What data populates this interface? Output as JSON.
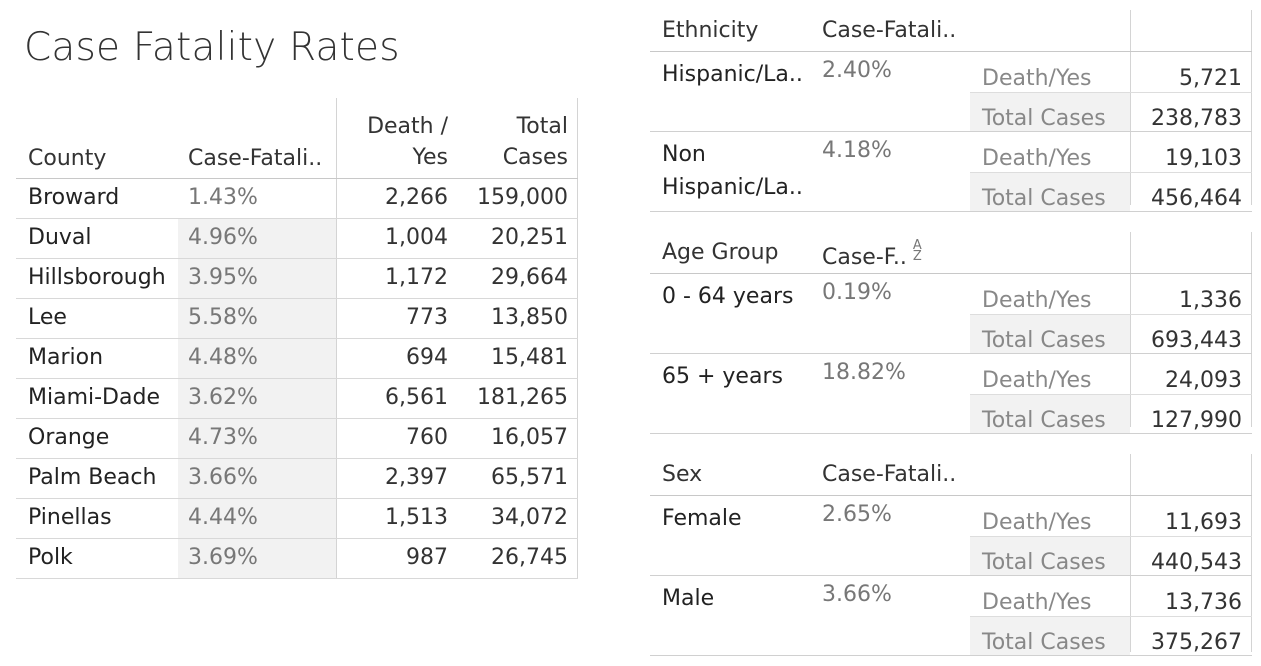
{
  "title": "Case Fatality Rates",
  "county_table": {
    "headers": {
      "county": "County",
      "cfr": "Case-Fatali..",
      "death_line1": "Death /",
      "death_line2": "Yes",
      "total_line1": "Total",
      "total_line2": "Cases"
    },
    "rows": [
      {
        "county": "Broward",
        "cfr": "1.43%",
        "death": "2,266",
        "total": "159,000"
      },
      {
        "county": "Duval",
        "cfr": "4.96%",
        "death": "1,004",
        "total": "20,251"
      },
      {
        "county": "Hillsborough",
        "cfr": "3.95%",
        "death": "1,172",
        "total": "29,664"
      },
      {
        "county": "Lee",
        "cfr": "5.58%",
        "death": "773",
        "total": "13,850"
      },
      {
        "county": "Marion",
        "cfr": "4.48%",
        "death": "694",
        "total": "15,481"
      },
      {
        "county": "Miami-Dade",
        "cfr": "3.62%",
        "death": "6,561",
        "total": "181,265"
      },
      {
        "county": "Orange",
        "cfr": "4.73%",
        "death": "760",
        "total": "16,057"
      },
      {
        "county": "Palm Beach",
        "cfr": "3.66%",
        "death": "2,397",
        "total": "65,571"
      },
      {
        "county": "Pinellas",
        "cfr": "4.44%",
        "death": "1,513",
        "total": "34,072"
      },
      {
        "county": "Polk",
        "cfr": "3.69%",
        "death": "987",
        "total": "26,745"
      }
    ]
  },
  "measure_labels": {
    "death": "Death/Yes",
    "total": "Total Cases"
  },
  "ethnicity_table": {
    "header": "Ethnicity",
    "cfr_header": "Case-Fatali..",
    "groups": [
      {
        "name": "Hispanic/La..",
        "cfr": "2.40%",
        "death": "5,721",
        "total": "238,783"
      },
      {
        "name": "Non Hispanic/La..",
        "cfr": "4.18%",
        "death": "19,103",
        "total": "456,464"
      }
    ]
  },
  "age_table": {
    "header": "Age Group",
    "cfr_header": "Case-F..",
    "sort_icon": "sort-ascending-icon",
    "sort_glyph_top": "A",
    "sort_glyph_bottom": "Z",
    "groups": [
      {
        "name": "0 - 64 years",
        "cfr": "0.19%",
        "death": "1,336",
        "total": "693,443"
      },
      {
        "name": "65 + years",
        "cfr": "18.82%",
        "death": "24,093",
        "total": "127,990"
      }
    ]
  },
  "sex_table": {
    "header": "Sex",
    "cfr_header": "Case-Fatali..",
    "groups": [
      {
        "name": "Female",
        "cfr": "2.65%",
        "death": "11,693",
        "total": "440,543"
      },
      {
        "name": "Male",
        "cfr": "3.66%",
        "death": "13,736",
        "total": "375,267"
      }
    ]
  },
  "colors": {
    "band": "#f2f2f2",
    "rule": "#d4d4d4"
  }
}
